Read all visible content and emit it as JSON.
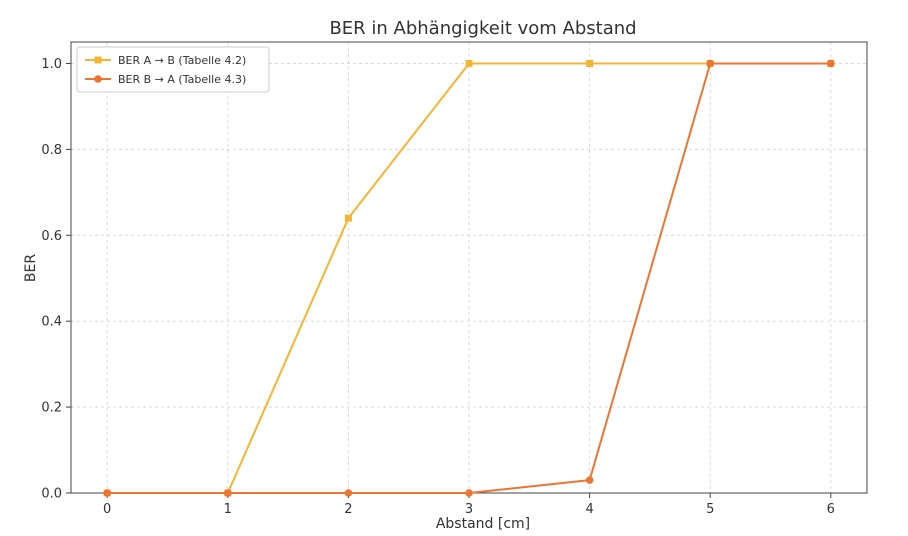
{
  "chart_data": {
    "type": "line",
    "title": "BER in Abhängigkeit vom Abstand",
    "xlabel": "Abstand [cm]",
    "ylabel": "BER",
    "x": [
      0,
      1,
      2,
      3,
      4,
      5,
      6
    ],
    "xlim": [
      -0.3,
      6.3
    ],
    "ylim": [
      0,
      1.05
    ],
    "xticks": [
      "0",
      "1",
      "2",
      "3",
      "4",
      "5",
      "6"
    ],
    "yticks": [
      "0.0",
      "0.2",
      "0.4",
      "0.6",
      "0.8",
      "1.0"
    ],
    "grid": true,
    "legend_position": "top-left",
    "series": [
      {
        "name": "BER A → B (Tabelle 4.2)",
        "values": [
          0,
          0,
          0.64,
          1.0,
          1.0,
          1.0,
          1.0
        ],
        "color": "#F5B431",
        "marker": "square"
      },
      {
        "name": "BER B → A (Tabelle 4.3)",
        "values": [
          0,
          0,
          0,
          0,
          0.03,
          1.0,
          1.0
        ],
        "color": "#EC7532",
        "marker": "circle"
      }
    ]
  }
}
